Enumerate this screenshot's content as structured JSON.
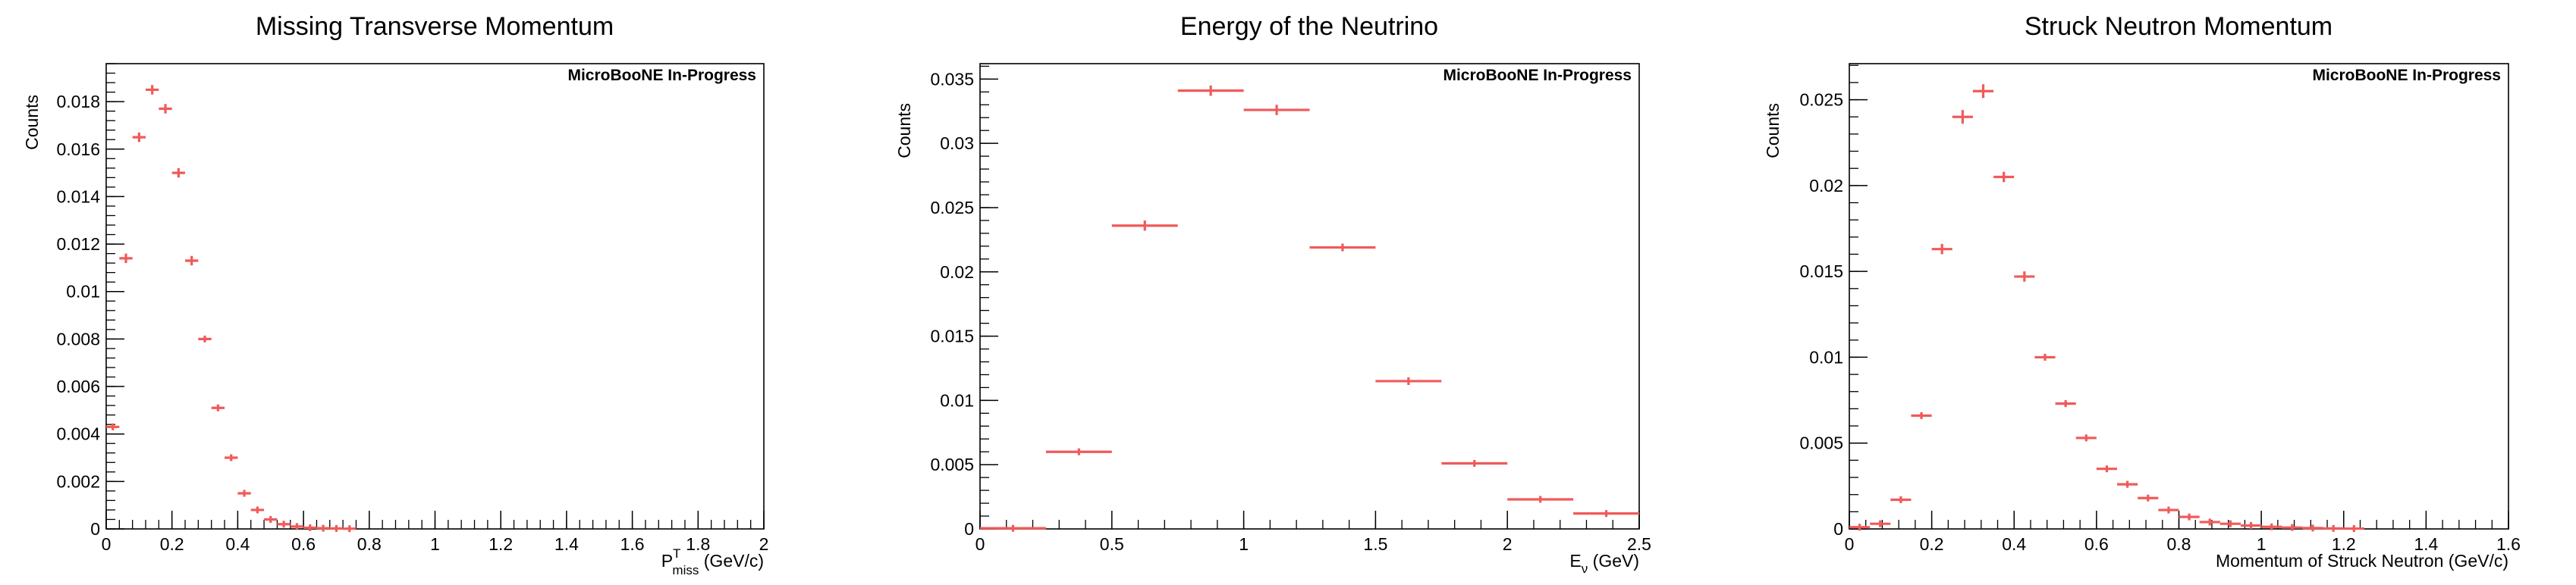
{
  "style": {
    "marker_color": "#f05a5a",
    "axis_color": "#000000",
    "background": "#ffffff"
  },
  "chart_data": [
    {
      "type": "scatter",
      "title": "Missing Transverse Momentum",
      "badge": "MicroBooNE In-Progress",
      "xlabel": {
        "main": "P",
        "sup": "T",
        "sub": "miss",
        "unit": " (GeV/c)"
      },
      "ylabel": "Counts",
      "xlim": [
        0,
        2
      ],
      "ylim": [
        0,
        0.0196
      ],
      "xticks": [
        0,
        0.2,
        0.4,
        0.6,
        0.8,
        1,
        1.2,
        1.4,
        1.6,
        1.8,
        2
      ],
      "xtick_labels": [
        "0",
        "0.2",
        "0.4",
        "0.6",
        "0.8",
        "1",
        "1.2",
        "1.4",
        "1.6",
        "1.8",
        "2"
      ],
      "xminor_step": 0.04,
      "yticks": [
        0,
        0.002,
        0.004,
        0.006,
        0.008,
        0.01,
        0.012,
        0.014,
        0.016,
        0.018
      ],
      "ytick_labels": [
        "0",
        "0.002",
        "0.004",
        "0.006",
        "0.008",
        "0.01",
        "0.012",
        "0.014",
        "0.016",
        "0.018"
      ],
      "yminor_step": 0.0004,
      "bin_width": 0.04,
      "series": [
        {
          "x": [
            0.02,
            0.06,
            0.1,
            0.14,
            0.18,
            0.22,
            0.26,
            0.3,
            0.34,
            0.38,
            0.42,
            0.46,
            0.5,
            0.54,
            0.58,
            0.62,
            0.66,
            0.7,
            0.74
          ],
          "y": [
            0.0043,
            0.0114,
            0.0165,
            0.0185,
            0.0177,
            0.015,
            0.0113,
            0.008,
            0.0051,
            0.003,
            0.0015,
            0.0008,
            0.0004,
            0.0002,
            0.0001,
            5e-05,
            3e-05,
            2e-05,
            1e-05
          ],
          "yerr": [
            0.0001,
            0.0002,
            0.0002,
            0.0002,
            0.0002,
            0.0002,
            0.0002,
            0.0001,
            0.0001,
            0.0001,
            0.0001,
            5e-05,
            5e-05,
            3e-05,
            2e-05,
            1e-05,
            1e-05,
            1e-05,
            1e-05
          ]
        }
      ]
    },
    {
      "type": "scatter",
      "title": "Energy of the Neutrino",
      "badge": "MicroBooNE In-Progress",
      "xlabel": {
        "main": "E",
        "sub": "ν",
        "unit": " (GeV)"
      },
      "ylabel": "Counts",
      "xlim": [
        0,
        2.5
      ],
      "ylim": [
        0,
        0.0362
      ],
      "xticks": [
        0,
        0.5,
        1,
        1.5,
        2,
        2.5
      ],
      "xtick_labels": [
        "0",
        "0.5",
        "1",
        "1.5",
        "2",
        "2.5"
      ],
      "xminor_step": 0.1,
      "yticks": [
        0,
        0.005,
        0.01,
        0.015,
        0.02,
        0.025,
        0.03,
        0.035
      ],
      "ytick_labels": [
        "0",
        "0.005",
        "0.01",
        "0.015",
        "0.02",
        "0.025",
        "0.03",
        "0.035"
      ],
      "yminor_step": 0.001,
      "bin_width": 0.25,
      "series": [
        {
          "x": [
            0.125,
            0.375,
            0.625,
            0.875,
            1.125,
            1.375,
            1.625,
            1.875,
            2.125,
            2.375
          ],
          "y": [
            5e-05,
            0.006,
            0.0236,
            0.0341,
            0.0326,
            0.0219,
            0.0115,
            0.0051,
            0.0023,
            0.0012
          ],
          "yerr": [
            5e-05,
            0.0002,
            0.0004,
            0.0004,
            0.0004,
            0.0003,
            0.0003,
            0.0002,
            0.0001,
            0.0001
          ]
        }
      ]
    },
    {
      "type": "scatter",
      "title": "Struck Neutron Momentum",
      "badge": "MicroBooNE In-Progress",
      "xlabel": {
        "main": "Momentum of Struck Neutron (GeV/c)"
      },
      "ylabel": "Counts",
      "xlim": [
        0,
        1.6
      ],
      "ylim": [
        0,
        0.0271
      ],
      "xticks": [
        0,
        0.2,
        0.4,
        0.6,
        0.8,
        1,
        1.2,
        1.4,
        1.6
      ],
      "xtick_labels": [
        "0",
        "0.2",
        "0.4",
        "0.6",
        "0.8",
        "1",
        "1.2",
        "1.4",
        "1.6"
      ],
      "xminor_step": 0.04,
      "yticks": [
        0,
        0.005,
        0.01,
        0.015,
        0.02,
        0.025
      ],
      "ytick_labels": [
        "0",
        "0.005",
        "0.01",
        "0.015",
        "0.02",
        "0.025"
      ],
      "yminor_step": 0.001,
      "bin_width": 0.05,
      "series": [
        {
          "x": [
            0.025,
            0.075,
            0.125,
            0.175,
            0.225,
            0.275,
            0.325,
            0.375,
            0.425,
            0.475,
            0.525,
            0.575,
            0.625,
            0.675,
            0.725,
            0.775,
            0.825,
            0.875,
            0.925,
            0.975,
            1.025,
            1.075,
            1.125,
            1.175,
            1.225
          ],
          "y": [
            0.0001,
            0.0003,
            0.0017,
            0.0066,
            0.0163,
            0.024,
            0.0255,
            0.0205,
            0.0147,
            0.01,
            0.0073,
            0.0053,
            0.0035,
            0.0026,
            0.0018,
            0.0011,
            0.0007,
            0.0004,
            0.0003,
            0.0002,
            0.00012,
            8e-05,
            5e-05,
            3e-05,
            2e-05
          ],
          "yerr": [
            2e-05,
            5e-05,
            0.0001,
            0.0002,
            0.0003,
            0.0004,
            0.0004,
            0.0003,
            0.0003,
            0.0002,
            0.0002,
            0.0002,
            0.0001,
            0.0001,
            0.0001,
            0.0001,
            5e-05,
            4e-05,
            3e-05,
            2e-05,
            2e-05,
            1e-05,
            1e-05,
            1e-05,
            1e-05
          ]
        }
      ]
    }
  ]
}
